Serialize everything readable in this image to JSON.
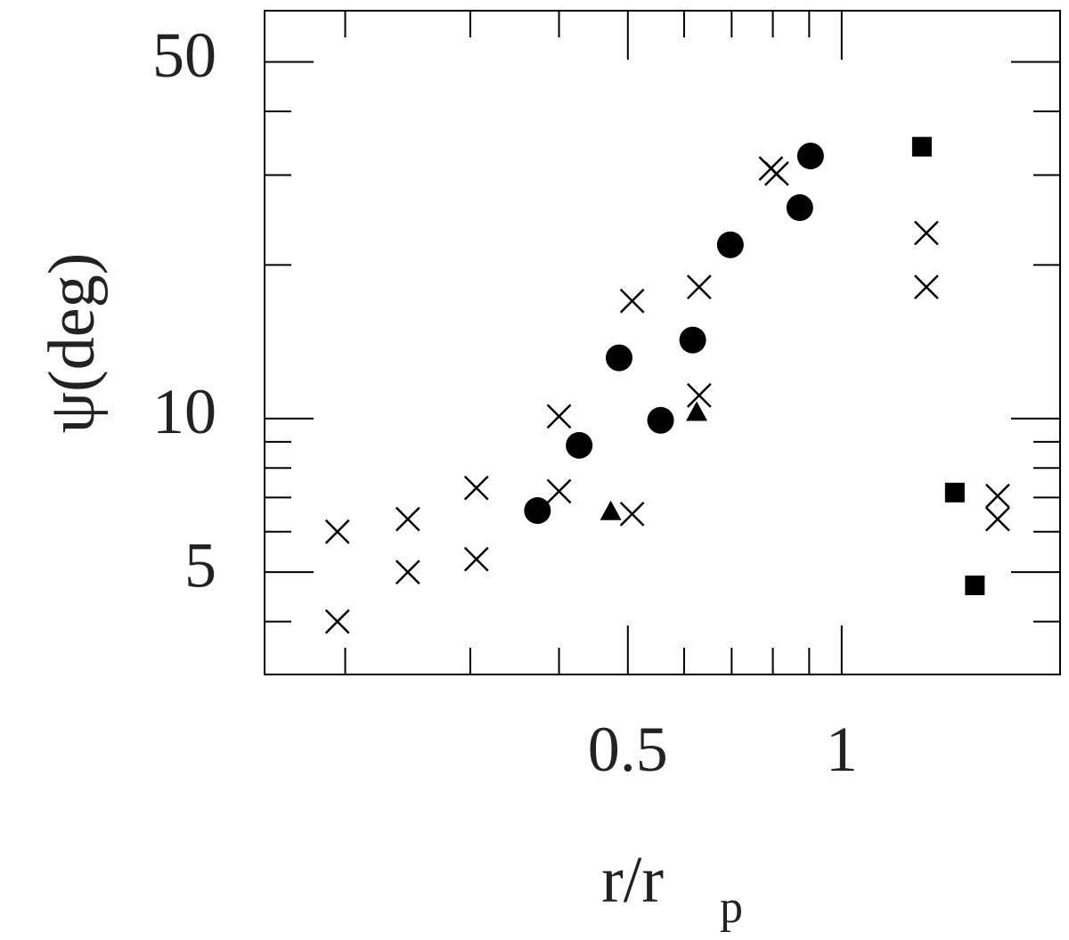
{
  "chart_data": {
    "type": "scatter",
    "xlabel": "r/r",
    "xlabel_subscript": "p",
    "ylabel": "ψ(deg)",
    "xscale": "log",
    "yscale": "log",
    "xlim": [
      0.154,
      2.03
    ],
    "ylim": [
      3.15,
      63
    ],
    "xticks": [
      0.5,
      1
    ],
    "xminor_ticks": [
      0.2,
      0.3,
      0.4,
      0.6,
      0.7,
      0.8,
      0.9
    ],
    "yticks": [
      5,
      10,
      50
    ],
    "yminor_ticks": [
      4,
      6,
      7,
      8,
      9,
      20,
      30,
      40
    ],
    "series": [
      {
        "marker": "cross",
        "color": "#000000",
        "x": [
          0.195,
          0.195,
          0.245,
          0.245,
          0.306,
          0.306,
          0.4,
          0.4,
          0.507,
          0.507,
          0.63,
          0.63,
          0.795,
          0.81,
          1.316,
          1.316,
          1.658,
          1.658
        ],
        "values": [
          6.0,
          4.0,
          6.35,
          5.0,
          7.31,
          5.3,
          10.1,
          7.2,
          17.0,
          6.5,
          18.1,
          11.1,
          30.9,
          30.2,
          23.1,
          18.1,
          7.05,
          6.35
        ]
      },
      {
        "marker": "circle",
        "color": "#000000",
        "x": [
          0.373,
          0.427,
          0.486,
          0.556,
          0.617,
          0.697,
          0.873,
          0.904
        ],
        "values": [
          6.6,
          8.86,
          13.15,
          9.92,
          14.25,
          21.9,
          25.9,
          32.7
        ]
      },
      {
        "marker": "triangle",
        "color": "#000000",
        "x": [
          0.473,
          0.625
        ],
        "values": [
          6.58,
          10.3
        ]
      },
      {
        "marker": "square",
        "color": "#000000",
        "x": [
          1.297,
          1.443,
          1.54
        ],
        "values": [
          34.1,
          7.16,
          4.71
        ]
      }
    ]
  }
}
